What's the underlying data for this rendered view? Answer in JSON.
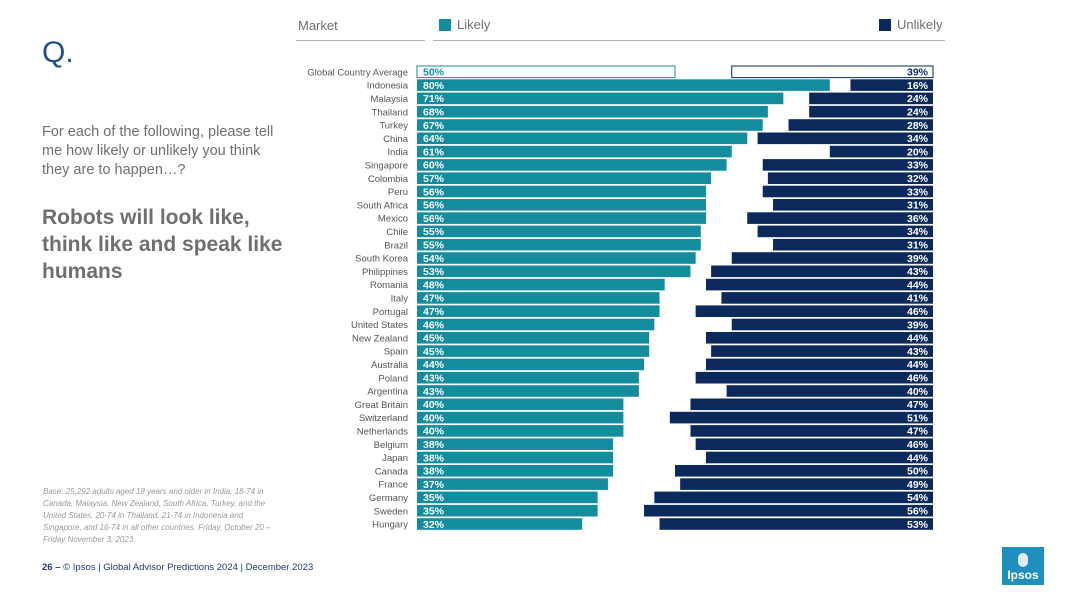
{
  "slide": {
    "q_mark": "Q.",
    "question": "For each of the following, please tell me how likely or unlikely you think they are to happen…?",
    "statement": "Robots will look like, think like and speak like humans",
    "base_note": "Base: 25,292 adults aged 18 years and older in India, 18-74 in Canada, Malaysia, New Zealand, South Africa, Turkey, and the United States, 20-74 in Thailand, 21-74 in Indonesia and Singapore, and 16-74 in all other countries. Friday, October 20 – Friday November 3, 2023",
    "page_number": "26 –",
    "footer_text": "© Ipsos | Global Advisor Predictions 2024 | December 2023",
    "logo_text": "Ipsos"
  },
  "colors": {
    "likely": "#138d9e",
    "unlikely": "#0b2a5b",
    "average_border_likely": "#138d9e",
    "average_border_unlikely": "#0b2a5b"
  },
  "chart_data": {
    "type": "bar",
    "orientation": "horizontal-diverging",
    "header_market": "Market",
    "series": [
      {
        "name": "Likely",
        "values": [
          50,
          80,
          71,
          68,
          67,
          64,
          61,
          60,
          57,
          56,
          56,
          56,
          55,
          55,
          54,
          53,
          48,
          47,
          47,
          46,
          45,
          45,
          44,
          43,
          43,
          40,
          40,
          40,
          38,
          38,
          38,
          37,
          35,
          35,
          32
        ]
      },
      {
        "name": "Unlikely",
        "values": [
          39,
          16,
          24,
          24,
          28,
          34,
          20,
          33,
          32,
          33,
          31,
          36,
          34,
          31,
          39,
          43,
          44,
          41,
          46,
          39,
          44,
          43,
          44,
          46,
          40,
          47,
          51,
          47,
          46,
          44,
          50,
          49,
          54,
          56,
          53
        ]
      }
    ],
    "categories": [
      "Global Country Average",
      "Indonesia",
      "Malaysia",
      "Thailand",
      "Turkey",
      "China",
      "India",
      "Singapore",
      "Colombia",
      "Peru",
      "South Africa",
      "Mexico",
      "Chile",
      "Brazil",
      "South Korea",
      "Philippines",
      "Romania",
      "Italy",
      "Portugal",
      "United States",
      "New Zealand",
      "Spain",
      "Australia",
      "Poland",
      "Argentina",
      "Great Britain",
      "Switzerland",
      "Netherlands",
      "Belgium",
      "Japan",
      "Canada",
      "France",
      "Germany",
      "Sweden",
      "Hungary"
    ],
    "value_suffix": "%",
    "xlim": [
      0,
      100
    ]
  }
}
